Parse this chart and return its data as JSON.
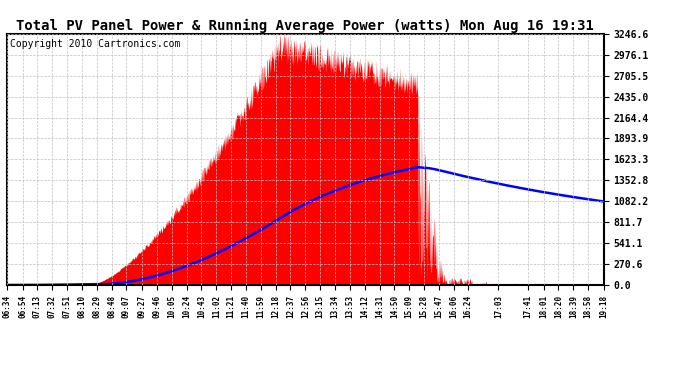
{
  "title": "Total PV Panel Power & Running Average Power (watts) Mon Aug 16 19:31",
  "copyright": "Copyright 2010 Cartronics.com",
  "y_ticks": [
    0.0,
    270.6,
    541.1,
    811.7,
    1082.2,
    1352.8,
    1623.3,
    1893.9,
    2164.4,
    2435.0,
    2705.5,
    2976.1,
    3246.6
  ],
  "y_max": 3246.6,
  "x_labels": [
    "06:34",
    "06:54",
    "07:13",
    "07:32",
    "07:51",
    "08:10",
    "08:29",
    "08:48",
    "09:07",
    "09:27",
    "09:46",
    "10:05",
    "10:24",
    "10:43",
    "11:02",
    "11:21",
    "11:40",
    "11:59",
    "12:18",
    "12:37",
    "12:56",
    "13:15",
    "13:34",
    "13:53",
    "14:12",
    "14:31",
    "14:50",
    "15:09",
    "15:28",
    "15:47",
    "16:06",
    "16:24",
    "17:03",
    "17:41",
    "18:01",
    "18:20",
    "18:39",
    "18:58",
    "19:18"
  ],
  "pv_color": "#FF0000",
  "avg_color": "#0000FF",
  "bg_color": "#FFFFFF",
  "grid_color": "#C0C0C0",
  "title_fontsize": 10,
  "copyright_fontsize": 7
}
